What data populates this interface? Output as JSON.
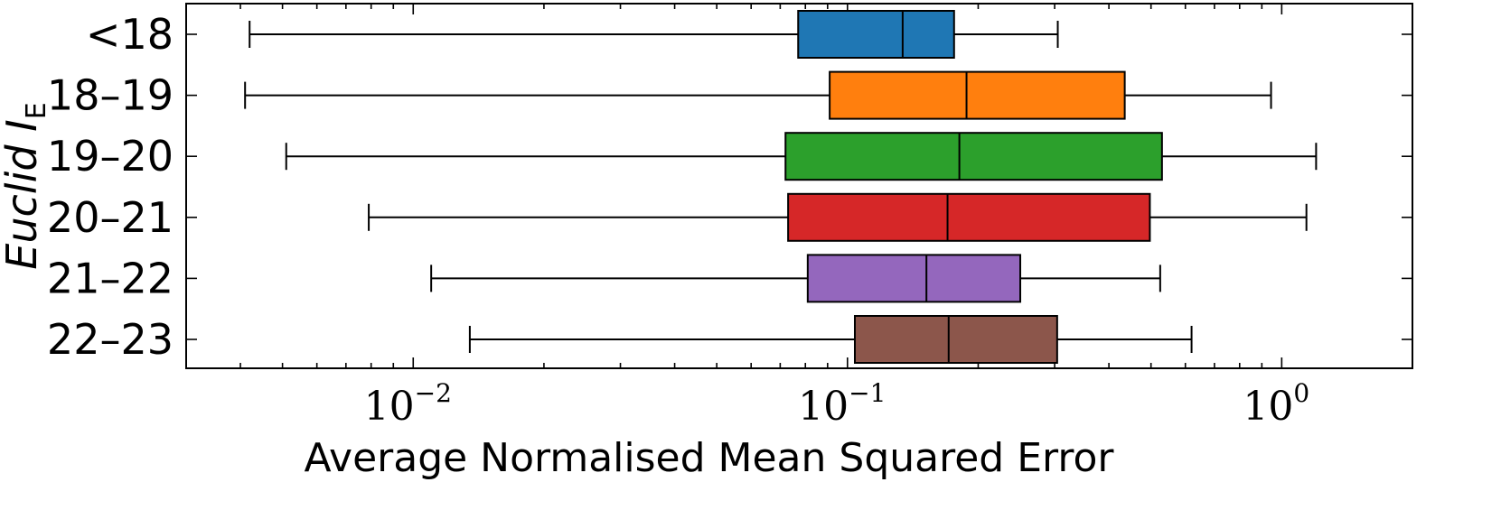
{
  "chart_data": {
    "type": "boxplot",
    "orientation": "horizontal",
    "xscale": "log",
    "xlim": [
      0.003,
      2.0
    ],
    "xlabel": "Average Normalised Mean Squared Error",
    "ylabel": {
      "text": "Euclid I",
      "subscript": "E"
    },
    "xticks": [
      {
        "value": 0.01,
        "base": "10",
        "exp": "−2"
      },
      {
        "value": 0.1,
        "base": "10",
        "exp": "−1"
      },
      {
        "value": 1,
        "base": "10",
        "exp": "0"
      }
    ],
    "grid": false,
    "series": [
      {
        "category": "<18",
        "whisker_low": 0.0042,
        "q1": 0.077,
        "median": 0.134,
        "q3": 0.176,
        "whisker_high": 0.305,
        "color": "#1f77b4"
      },
      {
        "category": "18–19",
        "whisker_low": 0.0041,
        "q1": 0.091,
        "median": 0.188,
        "q3": 0.435,
        "whisker_high": 0.945,
        "color": "#ff7f0e"
      },
      {
        "category": "19–20",
        "whisker_low": 0.0051,
        "q1": 0.072,
        "median": 0.181,
        "q3": 0.53,
        "whisker_high": 1.2,
        "color": "#2ca02c"
      },
      {
        "category": "20–21",
        "whisker_low": 0.0079,
        "q1": 0.073,
        "median": 0.17,
        "q3": 0.497,
        "whisker_high": 1.14,
        "color": "#d62728"
      },
      {
        "category": "21–22",
        "whisker_low": 0.011,
        "q1": 0.081,
        "median": 0.152,
        "q3": 0.25,
        "whisker_high": 0.525,
        "color": "#9467bd"
      },
      {
        "category": "22–23",
        "whisker_low": 0.0135,
        "q1": 0.104,
        "median": 0.171,
        "q3": 0.304,
        "whisker_high": 0.62,
        "color": "#8c564b"
      }
    ]
  }
}
